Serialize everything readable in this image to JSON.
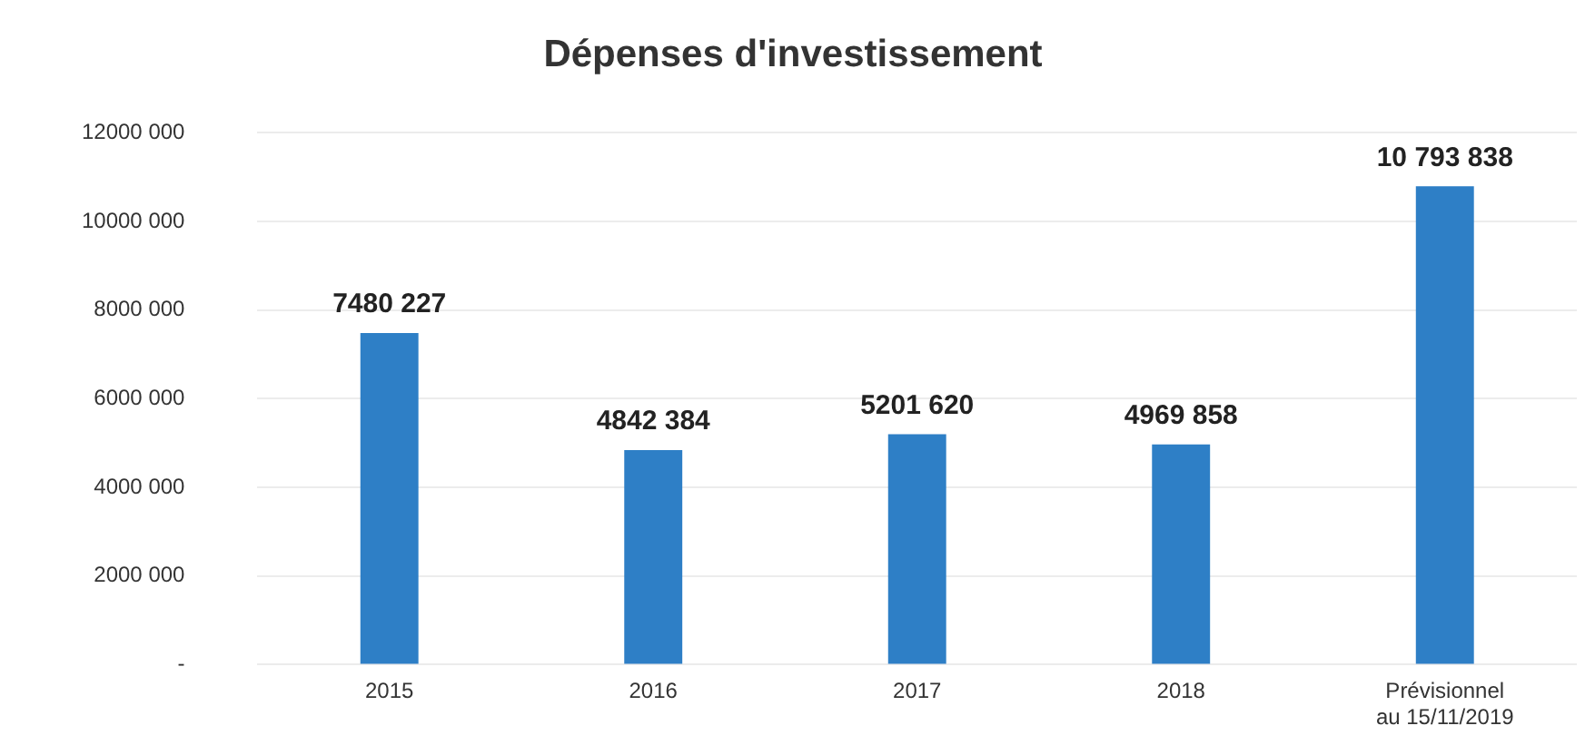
{
  "chart_data": {
    "type": "bar",
    "title": "Dépenses d'investissement",
    "categories": [
      "2015",
      "2016",
      "2017",
      "2018",
      "Prévisionnel au 15/11/2019"
    ],
    "values": [
      7480227,
      4842384,
      5201620,
      4969858,
      10793838
    ],
    "value_labels": [
      "7480 227",
      "4842 384",
      "5201 620",
      "4969 858",
      "10 793 838"
    ],
    "color": "#2e7fc6",
    "ylim": [
      0,
      12000000
    ],
    "yticks": [
      {
        "value": 0,
        "label": "-"
      },
      {
        "value": 2000000,
        "label": "2000 000"
      },
      {
        "value": 4000000,
        "label": "4000 000"
      },
      {
        "value": 6000000,
        "label": "6000 000"
      },
      {
        "value": 8000000,
        "label": "8000 000"
      },
      {
        "value": 10000000,
        "label": "10000 000"
      },
      {
        "value": 12000000,
        "label": "12000 000"
      }
    ],
    "grid": "y"
  }
}
